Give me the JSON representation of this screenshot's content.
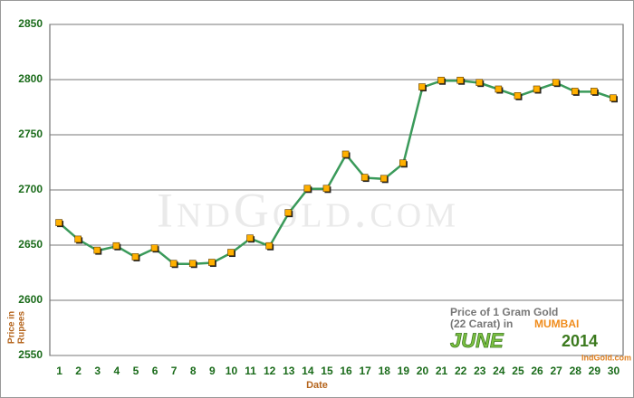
{
  "chart_data": {
    "type": "line",
    "x_label": "Date",
    "y_label_lines": [
      "Price in",
      "Rupees"
    ],
    "watermark": "IndGold.com",
    "inset": {
      "line1": "Price of 1 Gram Gold",
      "line2": "(22 Carat) in",
      "city": "MUMBAI",
      "month": "JUNE",
      "year": "2014",
      "site": "IndGold.com"
    },
    "categories": [
      "1",
      "2",
      "3",
      "4",
      "5",
      "6",
      "7",
      "8",
      "9",
      "10",
      "11",
      "12",
      "13",
      "14",
      "15",
      "16",
      "17",
      "18",
      "19",
      "20",
      "21",
      "22",
      "23",
      "24",
      "25",
      "26",
      "27",
      "28",
      "29",
      "30"
    ],
    "series": [
      {
        "name": "Price",
        "color": "#3a9a5a",
        "marker_color": "#ffb000",
        "values": [
          2670,
          2655,
          2645,
          2649,
          2639,
          2647,
          2633,
          2633,
          2634,
          2643,
          2656,
          2649,
          2679,
          2701,
          2701,
          2732,
          2711,
          2710,
          2724,
          2793,
          2799,
          2799,
          2797,
          2791,
          2785,
          2791,
          2797,
          2789,
          2789,
          2783
        ]
      }
    ],
    "ylim": [
      2550,
      2850
    ],
    "yticks": [
      2550,
      2600,
      2650,
      2700,
      2750,
      2800,
      2850
    ],
    "grid": true
  }
}
